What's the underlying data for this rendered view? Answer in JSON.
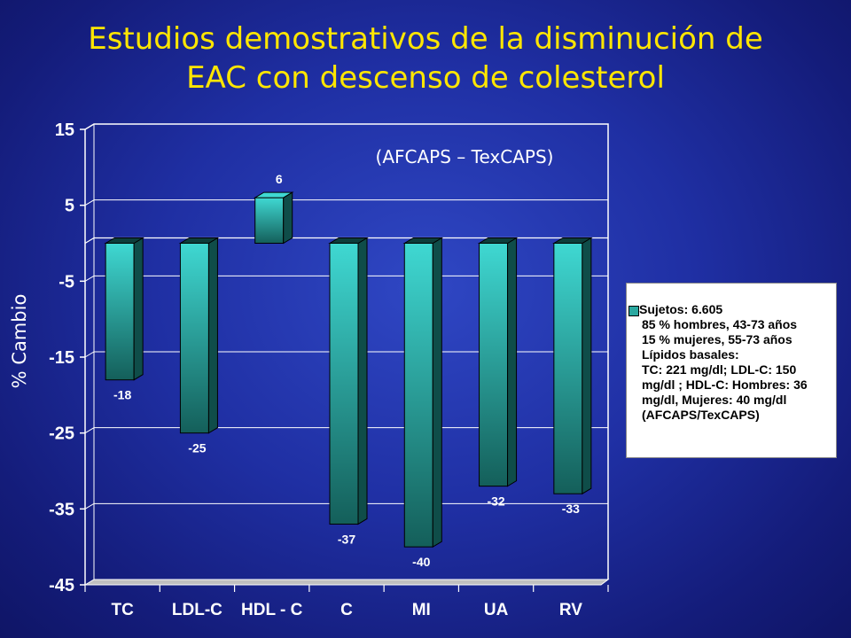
{
  "title_lines": [
    "Estudios demostrativos de la disminución de",
    "EAC con descenso de colesterol"
  ],
  "colors": {
    "background": "#1f2fa3",
    "title": "#ffe600",
    "bar_top": "#3fd8d2",
    "bar_bottom": "#145f5a",
    "bar_side": "#0f4d49",
    "bar_cap": "#0d3e3b",
    "plot_border": "#ffffff",
    "floor": "#c0c0c0",
    "legend_bg": "#ffffff"
  },
  "legend": {
    "lines": [
      "Sujetos: 6.605",
      "85 % hombres, 43-73 años",
      "15 % mujeres, 55-73 años",
      "Lípidos basales:",
      "TC: 221 mg/dl; LDL-C: 150",
      "mg/dl ; HDL-C: Hombres: 36",
      "mg/dl,  Mujeres: 40 mg/dl",
      "(AFCAPS/TexCAPS)"
    ]
  },
  "chart_data": {
    "type": "bar",
    "title": "Estudios demostrativos de la disminución de EAC con descenso de colesterol",
    "annotation": "(AFCAPS – TexCAPS)",
    "xlabel": "",
    "ylabel": "% Cambio",
    "categories": [
      "TC",
      "LDL-C",
      "HDL - C",
      "C",
      "MI",
      "UA",
      "RV"
    ],
    "values": [
      -18,
      -25,
      6,
      -37,
      -40,
      -32,
      -33
    ],
    "value_labels": [
      "-18",
      "-25",
      "6",
      "-37",
      "-40",
      "-32",
      "-33"
    ],
    "ylim": [
      -45,
      15
    ],
    "yticks": [
      15,
      5,
      -5,
      -15,
      -25,
      -35,
      -45
    ],
    "ytick_labels": [
      "15",
      "5",
      "-5",
      "-15",
      "-25",
      "-35",
      "-45"
    ],
    "grid": "horizontal",
    "legend_position": "right"
  }
}
